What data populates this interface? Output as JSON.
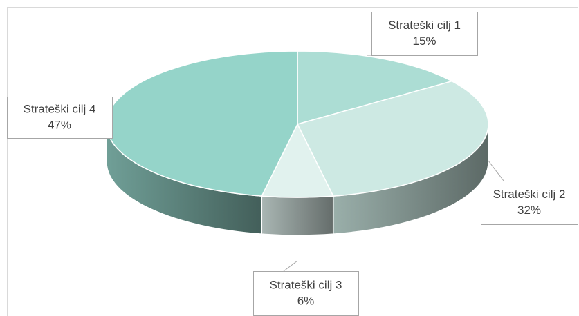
{
  "chart_data": {
    "type": "pie3d",
    "categories": [
      "Strateški cilj 1",
      "Strateški cilj 2",
      "Strateški cilj 3",
      "Strateški cilj 4"
    ],
    "values": [
      15,
      32,
      6,
      47
    ],
    "value_labels": [
      "15%",
      "32%",
      "6%",
      "47%"
    ],
    "colors": [
      "#acddd4",
      "#cde9e3",
      "#e1f2ee",
      "#95d4c9"
    ]
  }
}
